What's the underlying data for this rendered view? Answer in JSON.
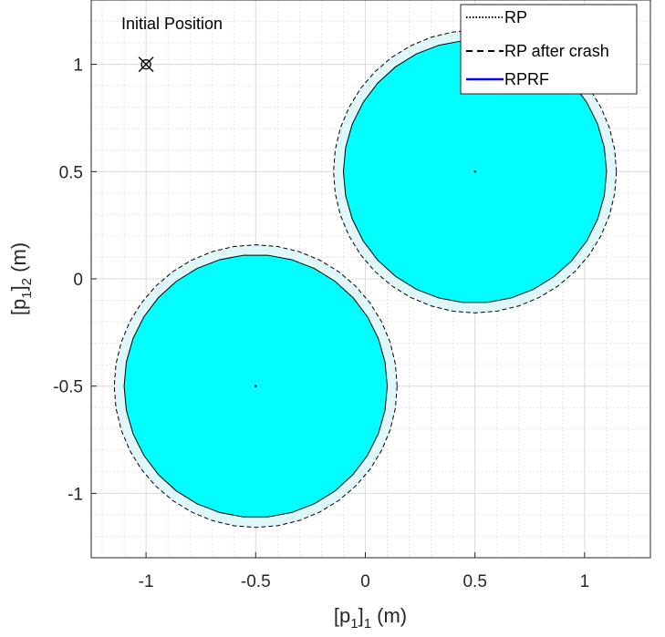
{
  "chart_data": {
    "type": "scatter",
    "title": "",
    "xlabel": {
      "base": "[p",
      "sub1": "1",
      "mid": "]",
      "sub2": "1",
      "unit": " (m)"
    },
    "ylabel": {
      "base": "[p",
      "sub1": "1",
      "mid": "]",
      "sub2": "2",
      "unit": " (m)"
    },
    "xlim": [
      -1.25,
      1.3
    ],
    "ylim": [
      -1.3,
      1.3
    ],
    "xticks": [
      -1,
      -0.5,
      0,
      0.5,
      1
    ],
    "xtick_labels": [
      "-1",
      "-0.5",
      "0",
      "0.5",
      "1"
    ],
    "yticks": [
      -1,
      -0.5,
      0,
      0.5,
      1
    ],
    "ytick_labels": [
      "-1",
      "-0.5",
      "0",
      "0.5",
      "1"
    ],
    "minor_step": 0.1,
    "grid": true,
    "obstacles": [
      {
        "center": [
          -0.5,
          -0.5
        ],
        "radius": 0.6,
        "rp_radius": 0.645
      },
      {
        "center": [
          0.5,
          0.5
        ],
        "radius": 0.6,
        "rp_radius": 0.645
      }
    ],
    "initial_position": {
      "x": -1,
      "y": 1,
      "label": "Initial Position"
    },
    "legend": {
      "location": "top-right",
      "entries": [
        {
          "label": "RP",
          "style": "dotted",
          "color": "#000000"
        },
        {
          "label": "RP after crash",
          "style": "dashed",
          "color": "#000000"
        },
        {
          "label": "RPRF",
          "style": "solid",
          "color": "#0000ff"
        }
      ]
    },
    "colors": {
      "obstacle_fill": "#00ffff",
      "rp_band": "#e0f7fa",
      "grid": "#e6e6e6",
      "axis": "#262626"
    }
  }
}
